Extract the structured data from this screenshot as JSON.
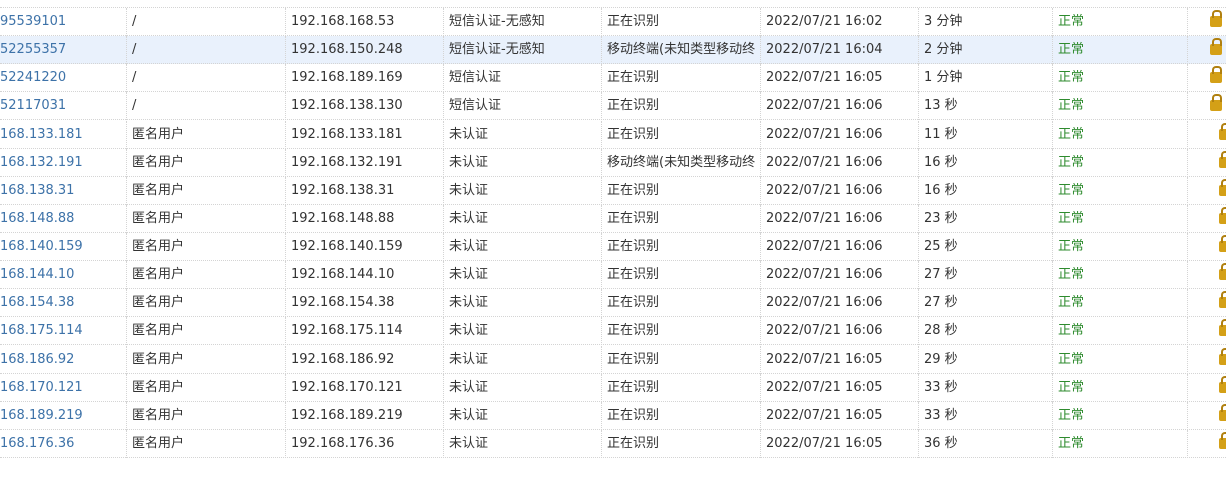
{
  "table": {
    "rows": [
      [
        "95539101",
        "/",
        "192.168.168.53",
        "短信认证-无感知",
        "正在识别",
        "2022/07/21 16:02",
        "3 分钟",
        "正常"
      ],
      [
        "52255357",
        "/",
        "192.168.150.248",
        "短信认证-无感知",
        "移动终端(未知类型移动终",
        "2022/07/21 16:04",
        "2 分钟",
        "正常"
      ],
      [
        "52241220",
        "/",
        "192.168.189.169",
        "短信认证",
        "正在识别",
        "2022/07/21 16:05",
        "1 分钟",
        "正常"
      ],
      [
        "52117031",
        "/",
        "192.168.138.130",
        "短信认证",
        "正在识别",
        "2022/07/21 16:06",
        "13 秒",
        "正常"
      ],
      [
        "168.133.181",
        "匿名用户",
        "192.168.133.181",
        "未认证",
        "正在识别",
        "2022/07/21 16:06",
        "11 秒",
        "正常"
      ],
      [
        "168.132.191",
        "匿名用户",
        "192.168.132.191",
        "未认证",
        "移动终端(未知类型移动终",
        "2022/07/21 16:06",
        "16 秒",
        "正常"
      ],
      [
        "168.138.31",
        "匿名用户",
        "192.168.138.31",
        "未认证",
        "正在识别",
        "2022/07/21 16:06",
        "16 秒",
        "正常"
      ],
      [
        "168.148.88",
        "匿名用户",
        "192.168.148.88",
        "未认证",
        "正在识别",
        "2022/07/21 16:06",
        "23 秒",
        "正常"
      ],
      [
        "168.140.159",
        "匿名用户",
        "192.168.140.159",
        "未认证",
        "正在识别",
        "2022/07/21 16:06",
        "25 秒",
        "正常"
      ],
      [
        "168.144.10",
        "匿名用户",
        "192.168.144.10",
        "未认证",
        "正在识别",
        "2022/07/21 16:06",
        "27 秒",
        "正常"
      ],
      [
        "168.154.38",
        "匿名用户",
        "192.168.154.38",
        "未认证",
        "正在识别",
        "2022/07/21 16:06",
        "27 秒",
        "正常"
      ],
      [
        "168.175.114",
        "匿名用户",
        "192.168.175.114",
        "未认证",
        "正在识别",
        "2022/07/21 16:06",
        "28 秒",
        "正常"
      ],
      [
        "168.186.92",
        "匿名用户",
        "192.168.186.92",
        "未认证",
        "正在识别",
        "2022/07/21 16:05",
        "29 秒",
        "正常"
      ],
      [
        "168.170.121",
        "匿名用户",
        "192.168.170.121",
        "未认证",
        "正在识别",
        "2022/07/21 16:05",
        "33 秒",
        "正常"
      ],
      [
        "168.189.219",
        "匿名用户",
        "192.168.189.219",
        "未认证",
        "正在识别",
        "2022/07/21 16:05",
        "33 秒",
        "正常"
      ],
      [
        "168.176.36",
        "匿名用户",
        "192.168.176.36",
        "未认证",
        "正在识别",
        "2022/07/21 16:05",
        "36 秒",
        "正常"
      ]
    ]
  }
}
